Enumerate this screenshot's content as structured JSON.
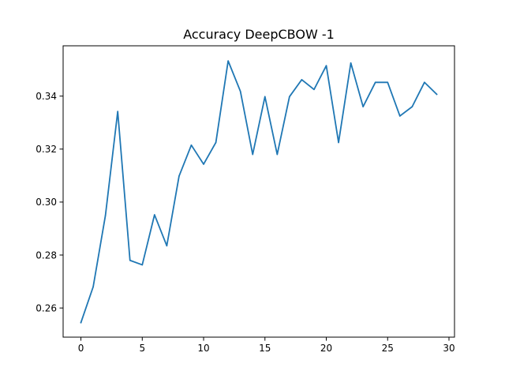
{
  "chart_data": {
    "type": "line",
    "title": "Accuracy DeepCBOW -1",
    "xlabel": "",
    "ylabel": "",
    "xlim": [
      -1.45,
      30.45
    ],
    "ylim": [
      0.249,
      0.359
    ],
    "x_ticks": [
      0,
      5,
      10,
      15,
      20,
      25,
      30
    ],
    "x_tick_labels": [
      "0",
      "5",
      "10",
      "15",
      "20",
      "25",
      "30"
    ],
    "y_ticks": [
      0.26,
      0.28,
      0.3,
      0.32,
      0.34
    ],
    "y_tick_labels": [
      "0.26",
      "0.28",
      "0.30",
      "0.32",
      "0.34"
    ],
    "grid": false,
    "series": [
      {
        "color": "#1f77b4",
        "x": [
          0,
          1,
          2,
          3,
          4,
          5,
          6,
          7,
          8,
          9,
          10,
          11,
          12,
          13,
          14,
          15,
          16,
          17,
          18,
          19,
          20,
          21,
          22,
          23,
          24,
          25,
          26,
          27,
          28,
          29
        ],
        "values": [
          0.2545,
          0.268,
          0.295,
          0.3342,
          0.278,
          0.2763,
          0.2952,
          0.2835,
          0.3098,
          0.3215,
          0.3143,
          0.3225,
          0.3533,
          0.3418,
          0.318,
          0.3398,
          0.318,
          0.3398,
          0.3462,
          0.3425,
          0.3515,
          0.3225,
          0.3525,
          0.336,
          0.3452,
          0.3452,
          0.3325,
          0.336,
          0.3452,
          0.3407
        ]
      }
    ]
  }
}
